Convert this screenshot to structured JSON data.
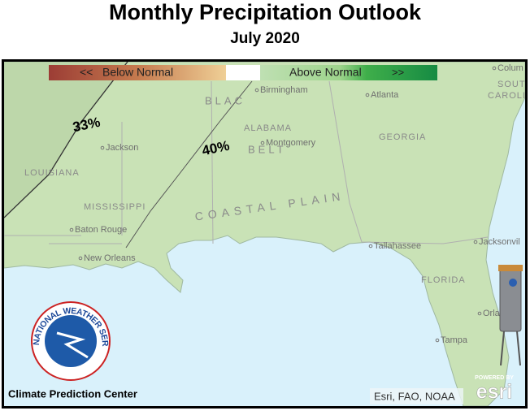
{
  "header": {
    "title": "Monthly Precipitation Outlook",
    "subtitle": "July 2020"
  },
  "legend": {
    "below": "<<   Below Normal",
    "above": "Above Normal",
    "above_arrow": ">>"
  },
  "contours": [
    {
      "label": "33%"
    },
    {
      "label": "40%"
    }
  ],
  "places": [
    "Colum",
    "SOUTH",
    "CAROLI",
    "Birmingham",
    "Atlanta",
    "ALABAMA",
    "Montgomery",
    "GEORGIA",
    "Jackson",
    "LOUISIANA",
    "MISSISSIPPI",
    "Baton Rouge",
    "New Orleans",
    "Tallahassee",
    "Jacksonvil",
    "FLORIDA",
    "Orla",
    "Tampa",
    "COASTAL   PLAIN",
    "BELT",
    "BLAC"
  ],
  "logo": {
    "text": "NATIONAL WEATHER SERVICE"
  },
  "footer": {
    "credit": "Climate Prediction Center",
    "attribution": "Esri, FAO, NOAA",
    "powered": "POWERED BY",
    "brand": "esri"
  }
}
